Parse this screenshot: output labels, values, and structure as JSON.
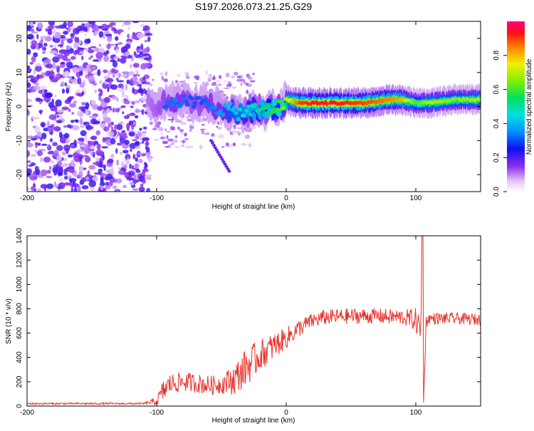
{
  "figure": {
    "title": "S197.2026.073.21.25.G29"
  },
  "chart_data": [
    {
      "type": "heatmap",
      "title": "S197.2026.073.21.25.G29",
      "xlabel": "Height of straight line (km)",
      "ylabel": "Frequency (Hz)",
      "xlim": [
        -200,
        150
      ],
      "ylim": [
        -25,
        25
      ],
      "xticks": [
        "-200",
        "-100",
        "0",
        "100"
      ],
      "yticks": [
        "20",
        "10",
        "0",
        "-10",
        "-20"
      ],
      "colorbar": {
        "label": "Normalized spectral amplitude",
        "range": [
          0,
          1
        ],
        "ticks": [
          "0.0",
          "0.2",
          "0.4",
          "0.6",
          "0.8"
        ]
      },
      "ridge": {
        "description": "dominant frequency track",
        "x": [
          -105,
          -95,
          -85,
          -75,
          -65,
          -55,
          -45,
          -35,
          -25,
          -15,
          -5,
          0,
          10,
          30,
          60,
          80,
          90,
          100,
          110,
          130,
          150
        ],
        "y": [
          0,
          1,
          2,
          1,
          1,
          0,
          -1,
          -2,
          -1,
          -1,
          0,
          2,
          1,
          1,
          1,
          2,
          2,
          1,
          1,
          2,
          2
        ],
        "amplitude": [
          0.25,
          0.3,
          0.35,
          0.3,
          0.3,
          0.35,
          0.4,
          0.45,
          0.5,
          0.55,
          0.6,
          0.7,
          0.9,
          0.95,
          0.9,
          0.85,
          0.8,
          0.6,
          0.7,
          0.65,
          0.7
        ]
      }
    },
    {
      "type": "line",
      "xlabel": "Height of straight line (km)",
      "ylabel": "SNR (10 * v/v)",
      "xlim": [
        -200,
        150
      ],
      "ylim": [
        0,
        1400
      ],
      "xticks": [
        "-200",
        "-100",
        "0",
        "100"
      ],
      "yticks": [
        "0",
        "200",
        "400",
        "600",
        "800",
        "1000",
        "1200",
        "1400"
      ],
      "series": [
        {
          "name": "SNR",
          "color": "#e8302a",
          "x": [
            -200,
            -150,
            -110,
            -100,
            -95,
            -90,
            -80,
            -70,
            -60,
            -50,
            -40,
            -30,
            -20,
            -10,
            0,
            10,
            20,
            30,
            50,
            70,
            90,
            100,
            104,
            105,
            106,
            108,
            110,
            130,
            150
          ],
          "y": [
            20,
            20,
            20,
            40,
            120,
            180,
            200,
            190,
            170,
            180,
            220,
            330,
            420,
            490,
            560,
            640,
            700,
            730,
            740,
            740,
            730,
            710,
            600,
            1400,
            50,
            700,
            720,
            720,
            710
          ],
          "noise": [
            10,
            10,
            10,
            40,
            120,
            110,
            100,
            100,
            100,
            100,
            160,
            200,
            160,
            140,
            110,
            90,
            80,
            80,
            80,
            80,
            80,
            120,
            200,
            0,
            0,
            80,
            60,
            60,
            60
          ]
        }
      ]
    }
  ]
}
